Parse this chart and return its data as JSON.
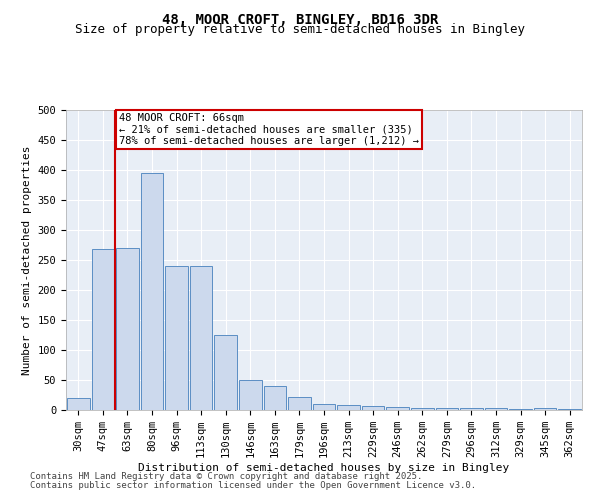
{
  "title": "48, MOOR CROFT, BINGLEY, BD16 3DR",
  "subtitle": "Size of property relative to semi-detached houses in Bingley",
  "xlabel": "Distribution of semi-detached houses by size in Bingley",
  "ylabel": "Number of semi-detached properties",
  "property_label": "48 MOOR CROFT: 66sqm",
  "annotation_line1": "← 21% of semi-detached houses are smaller (335)",
  "annotation_line2": "78% of semi-detached houses are larger (1,212) →",
  "bar_color": "#ccd9ed",
  "bar_edge_color": "#5b8ec4",
  "vline_color": "#cc0000",
  "annotation_box_color": "#cc0000",
  "background_color": "#e8eef6",
  "categories": [
    "30sqm",
    "47sqm",
    "63sqm",
    "80sqm",
    "96sqm",
    "113sqm",
    "130sqm",
    "146sqm",
    "163sqm",
    "179sqm",
    "196sqm",
    "213sqm",
    "229sqm",
    "246sqm",
    "262sqm",
    "279sqm",
    "296sqm",
    "312sqm",
    "329sqm",
    "345sqm",
    "362sqm"
  ],
  "values": [
    20,
    268,
    270,
    395,
    240,
    240,
    125,
    50,
    40,
    22,
    10,
    8,
    7,
    5,
    4,
    4,
    3,
    3,
    2,
    3,
    2
  ],
  "ylim": [
    0,
    500
  ],
  "yticks": [
    0,
    50,
    100,
    150,
    200,
    250,
    300,
    350,
    400,
    450,
    500
  ],
  "vline_x": 1.5,
  "footnote1": "Contains HM Land Registry data © Crown copyright and database right 2025.",
  "footnote2": "Contains public sector information licensed under the Open Government Licence v3.0.",
  "title_fontsize": 10,
  "subtitle_fontsize": 9,
  "axis_label_fontsize": 8,
  "tick_fontsize": 7.5,
  "annot_fontsize": 7.5,
  "footnote_fontsize": 6.5
}
